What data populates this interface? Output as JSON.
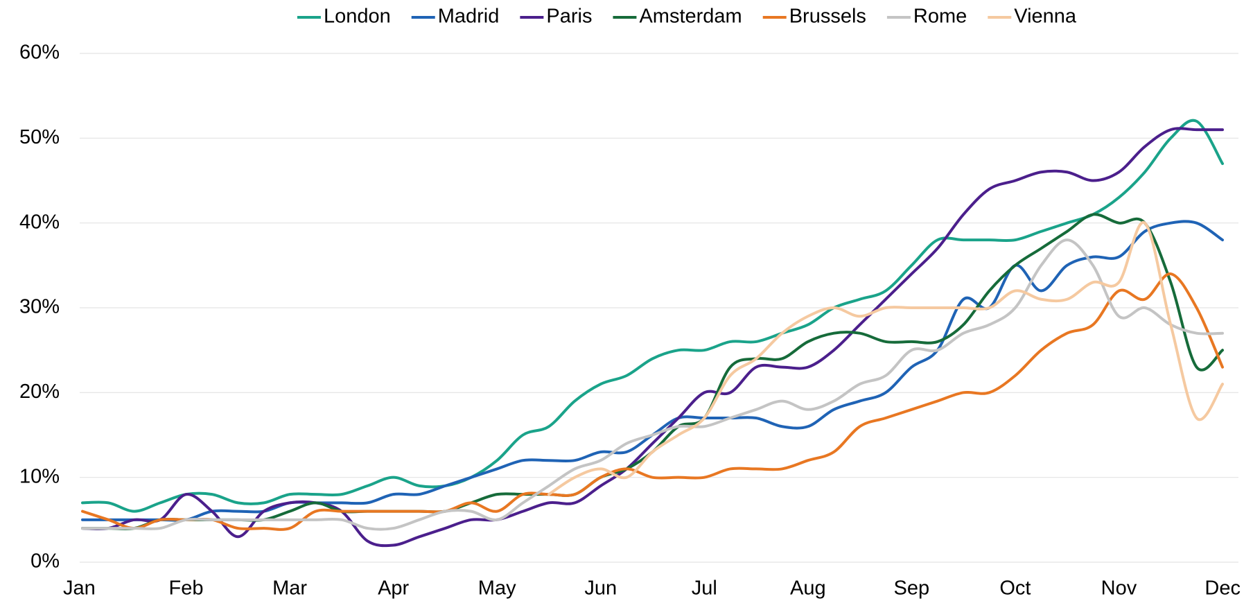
{
  "chart_data": {
    "type": "line",
    "categories": [
      "Jan",
      null,
      null,
      null,
      "Feb",
      null,
      null,
      null,
      "Mar",
      null,
      null,
      null,
      "Apr",
      null,
      null,
      null,
      "May",
      null,
      null,
      null,
      "Jun",
      null,
      null,
      null,
      "Jul",
      null,
      null,
      null,
      "Aug",
      null,
      null,
      null,
      "Sep",
      null,
      null,
      null,
      "Oct",
      null,
      null,
      null,
      "Nov",
      null,
      null,
      null,
      "Dec"
    ],
    "series": [
      {
        "name": "London",
        "color": "#1aa38a",
        "values": [
          7,
          7,
          6,
          7,
          8,
          8,
          7,
          7,
          8,
          8,
          8,
          9,
          10,
          9,
          9,
          10,
          12,
          15,
          16,
          19,
          21,
          22,
          24,
          25,
          25,
          26,
          26,
          27,
          28,
          30,
          31,
          32,
          35,
          38,
          38,
          38,
          38,
          39,
          40,
          41,
          43,
          46,
          50,
          52,
          47
        ]
      },
      {
        "name": "Madrid",
        "color": "#1f63b5",
        "values": [
          5,
          5,
          5,
          5,
          5,
          6,
          6,
          6,
          7,
          7,
          7,
          7,
          8,
          8,
          9,
          10,
          11,
          12,
          12,
          12,
          13,
          13,
          15,
          17,
          17,
          17,
          17,
          16,
          16,
          18,
          19,
          20,
          23,
          25,
          31,
          30,
          35,
          32,
          35,
          36,
          36,
          39,
          40,
          40,
          38
        ]
      },
      {
        "name": "Paris",
        "color": "#4b1f8c",
        "values": [
          4,
          4,
          5,
          5,
          8,
          6,
          3,
          6,
          7,
          7,
          6,
          2.5,
          2,
          3,
          4,
          5,
          5,
          6,
          7,
          7,
          9,
          11,
          14,
          17,
          20,
          20,
          23,
          23,
          23,
          25,
          28,
          31,
          34,
          37,
          41,
          44,
          45,
          46,
          46,
          45,
          46,
          49,
          51,
          51,
          51
        ]
      },
      {
        "name": "Amsterdam",
        "color": "#166b3a",
        "values": [
          4,
          4,
          4,
          5,
          5,
          5,
          5,
          5,
          6,
          7,
          6,
          6,
          6,
          6,
          6,
          7,
          8,
          8,
          8,
          8,
          10,
          11,
          13,
          16,
          17,
          23,
          24,
          24,
          26,
          27,
          27,
          26,
          26,
          26,
          28,
          32,
          35,
          37,
          39,
          41,
          40,
          40,
          33,
          23,
          25
        ]
      },
      {
        "name": "Brussels",
        "color": "#e87722",
        "values": [
          6,
          5,
          4,
          5,
          5,
          5,
          4,
          4,
          4,
          6,
          6,
          6,
          6,
          6,
          6,
          7,
          6,
          8,
          8,
          8,
          10,
          11,
          10,
          10,
          10,
          11,
          11,
          11,
          12,
          13,
          16,
          17,
          18,
          19,
          20,
          20,
          22,
          25,
          27,
          28,
          32,
          31,
          34,
          30,
          23
        ]
      },
      {
        "name": "Rome",
        "color": "#c4c4c4",
        "values": [
          4,
          4,
          4,
          4,
          5,
          5,
          5,
          5,
          5,
          5,
          5,
          4,
          4,
          5,
          6,
          6,
          5,
          7,
          9,
          11,
          12,
          14,
          15,
          16,
          16,
          17,
          18,
          19,
          18,
          19,
          21,
          22,
          25,
          25,
          27,
          28,
          30,
          35,
          38,
          35,
          29,
          30,
          28,
          27,
          27
        ]
      },
      {
        "name": "Vienna",
        "color": "#f5c9a0",
        "values": [
          null,
          null,
          null,
          null,
          null,
          null,
          null,
          null,
          null,
          null,
          null,
          null,
          null,
          null,
          null,
          null,
          null,
          null,
          8,
          10,
          11,
          10,
          13,
          15,
          17,
          22,
          24,
          27,
          29,
          30,
          29,
          30,
          30,
          30,
          30,
          30,
          32,
          31,
          31,
          33,
          33,
          40,
          28,
          17,
          21
        ]
      }
    ],
    "ylim": [
      0,
      60
    ],
    "yticks": [
      {
        "value": 0,
        "label": "0%"
      },
      {
        "value": 10,
        "label": "10%"
      },
      {
        "value": 20,
        "label": "20%"
      },
      {
        "value": 30,
        "label": "30%"
      },
      {
        "value": 40,
        "label": "40%"
      },
      {
        "value": 50,
        "label": "50%"
      },
      {
        "value": 60,
        "label": "60%"
      }
    ],
    "grid": true,
    "legend": "top"
  }
}
